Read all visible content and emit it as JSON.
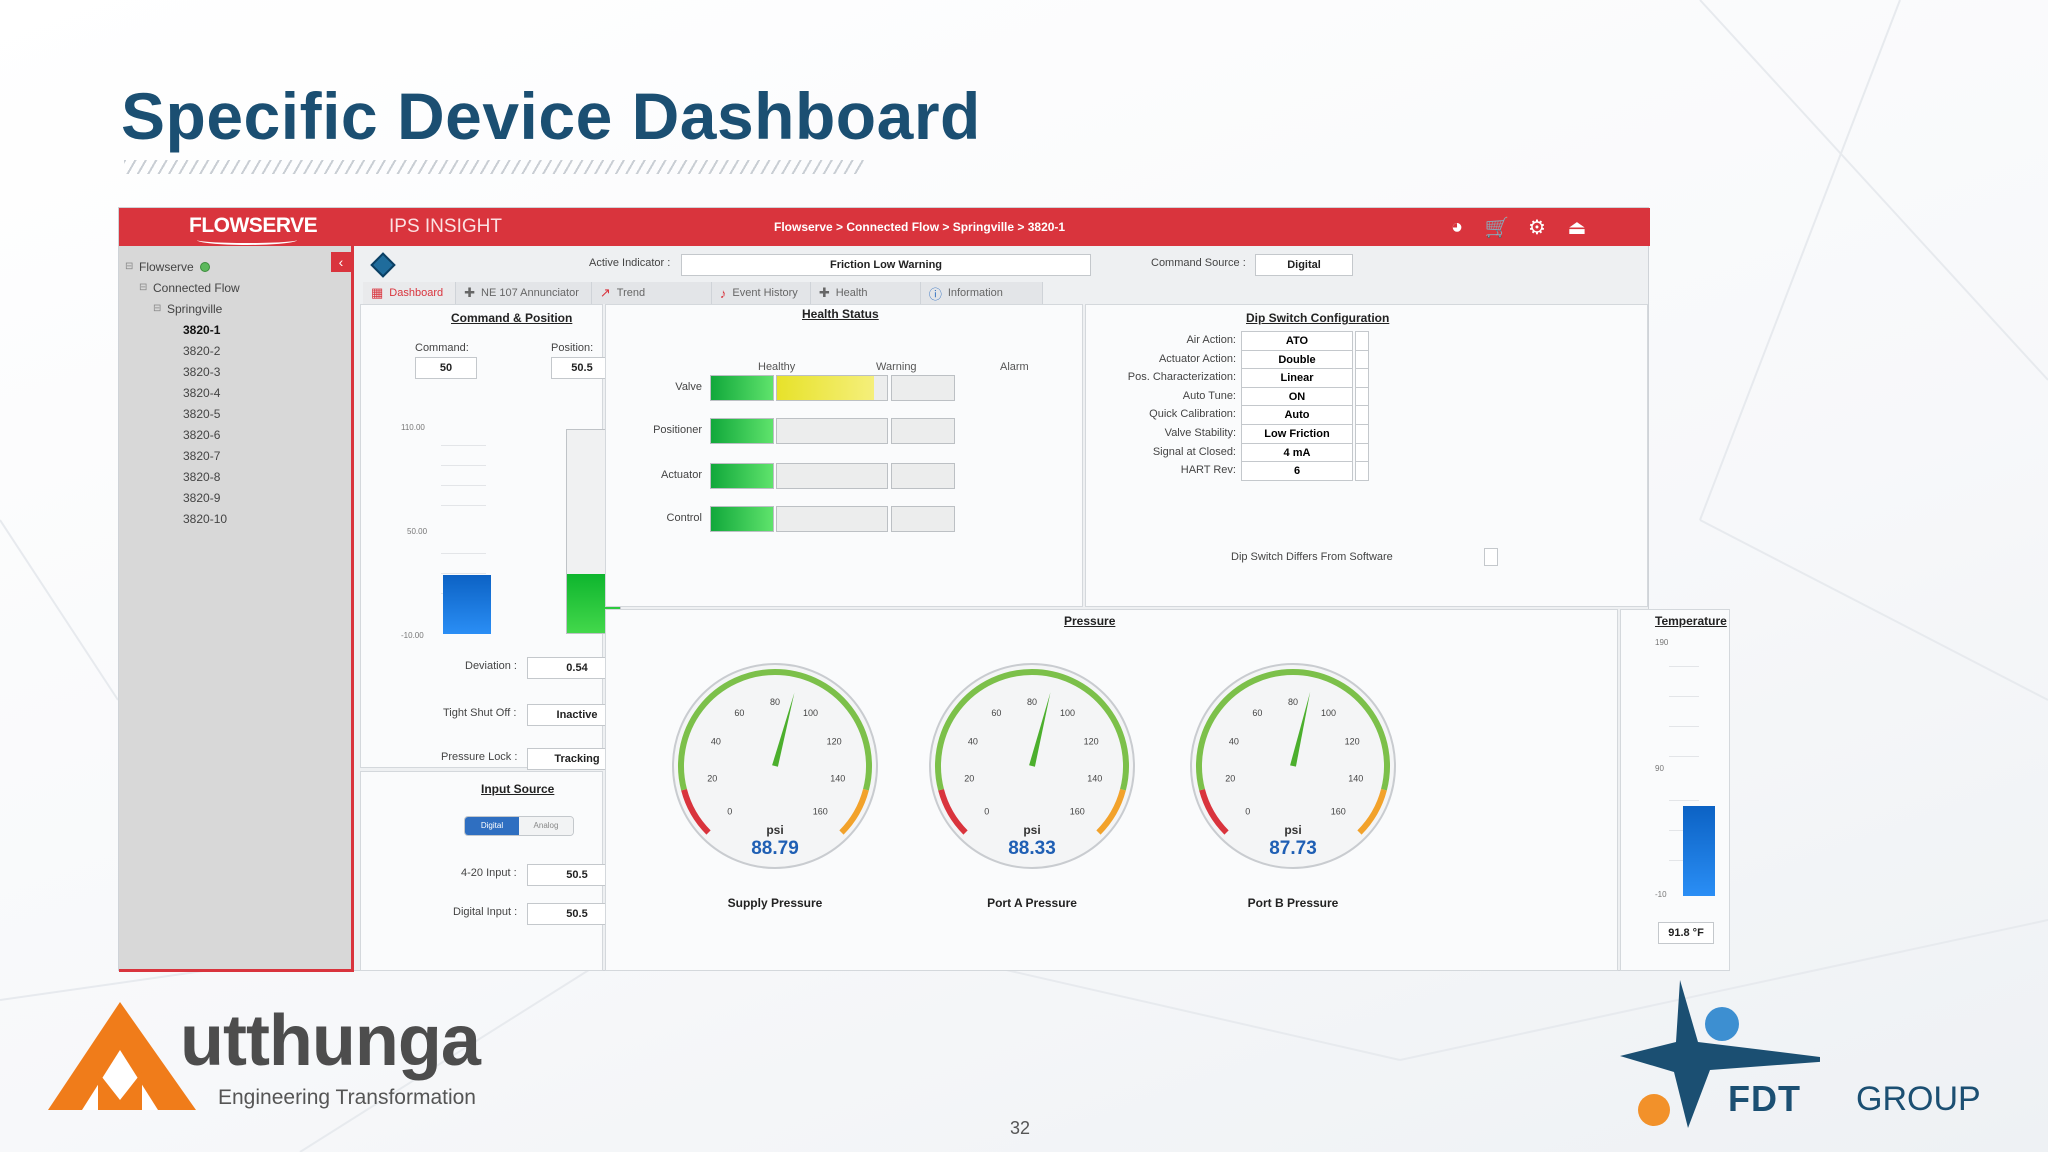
{
  "slide": {
    "title": "Specific Device Dashboard",
    "page_number": "32"
  },
  "app": {
    "brand": "FLOWSERVE",
    "product": "IPS INSIGHT",
    "breadcrumb": "Flowserve > Connected Flow > Springville > 3820-1",
    "top_icons": [
      "user-icon",
      "cart-icon",
      "settings-icon",
      "logout-icon"
    ]
  },
  "sidebar": {
    "root": "Flowserve",
    "group": "Connected Flow",
    "site": "Springville",
    "devices": [
      "3820-1",
      "3820-2",
      "3820-3",
      "3820-4",
      "3820-5",
      "3820-6",
      "3820-7",
      "3820-8",
      "3820-9",
      "3820-10"
    ],
    "selected": "3820-1"
  },
  "header": {
    "active_indicator_label": "Active Indicator :",
    "active_indicator_value": "Friction Low Warning",
    "command_source_label": "Command Source :",
    "command_source_value": "Digital"
  },
  "tabs": [
    {
      "label": "Dashboard",
      "icon": "dashboard-icon",
      "active": true
    },
    {
      "label": "NE 107 Annunciator",
      "icon": "annunciator-icon",
      "active": false
    },
    {
      "label": "Trend",
      "icon": "trend-icon",
      "active": false
    },
    {
      "label": "Event History",
      "icon": "bell-icon",
      "active": false
    },
    {
      "label": "Health",
      "icon": "health-icon",
      "active": false
    },
    {
      "label": "Information",
      "icon": "info-icon",
      "active": false
    }
  ],
  "command_position": {
    "title": "Command & Position",
    "command_label": "Command:",
    "command_value": "50",
    "position_label": "Position:",
    "position_value": "50.5",
    "axis_ticks": [
      "110.00",
      "50.00",
      "-10.00"
    ],
    "deviation_label": "Deviation :",
    "deviation_value": "0.54",
    "tight_shut_off_label": "Tight Shut Off :",
    "tight_shut_off_value": "Inactive",
    "pressure_lock_label": "Pressure Lock :",
    "pressure_lock_value": "Tracking"
  },
  "input_source": {
    "title": "Input Source",
    "toggle_on": "Digital",
    "toggle_off": "Analog",
    "input_420_label": "4-20 Input :",
    "input_420_value": "50.5",
    "digital_input_label": "Digital Input :",
    "digital_input_value": "50.5",
    "unit": "%"
  },
  "health_status": {
    "title": "Health Status",
    "columns": [
      "Healthy",
      "Warning",
      "Alarm"
    ],
    "rows": [
      {
        "label": "Valve",
        "healthy": 1.0,
        "warning": 0.88,
        "alarm": 0.0
      },
      {
        "label": "Positioner",
        "healthy": 1.0,
        "warning": 0.0,
        "alarm": 0.0
      },
      {
        "label": "Actuator",
        "healthy": 1.0,
        "warning": 0.0,
        "alarm": 0.0
      },
      {
        "label": "Control",
        "healthy": 1.0,
        "warning": 0.0,
        "alarm": 0.0
      }
    ]
  },
  "dip_switch": {
    "title": "Dip Switch Configuration",
    "rows": [
      {
        "label": "Air Action:",
        "value": "ATO"
      },
      {
        "label": "Actuator Action:",
        "value": "Double"
      },
      {
        "label": "Pos. Characterization:",
        "value": "Linear"
      },
      {
        "label": "Auto Tune:",
        "value": "ON"
      },
      {
        "label": "Quick Calibration:",
        "value": "Auto"
      },
      {
        "label": "Valve Stability:",
        "value": "Low Friction"
      },
      {
        "label": "Signal at Closed:",
        "value": "4 mA"
      },
      {
        "label": "HART Rev:",
        "value": "6"
      }
    ],
    "differs_label": "Dip Switch Differs From Software"
  },
  "pressure": {
    "title": "Pressure",
    "ticks": [
      "0",
      "20",
      "40",
      "60",
      "80",
      "100",
      "120",
      "140",
      "160"
    ],
    "unit": "psi",
    "gauges": [
      {
        "name": "Supply Pressure",
        "value": "88.79",
        "needle": 88.79
      },
      {
        "name": "Port A Pressure",
        "value": "88.33",
        "needle": 88.33
      },
      {
        "name": "Port B Pressure",
        "value": "87.73",
        "needle": 87.73
      }
    ]
  },
  "temperature": {
    "title": "Temperature",
    "axis_ticks": [
      "190",
      "90",
      "-10"
    ],
    "value_text": "91.8 °F",
    "value": 91.8,
    "min": -10,
    "max": 190
  },
  "command_bars": {
    "min": -10,
    "max": 110,
    "command": 50,
    "position": 50.5
  },
  "colors": {
    "brand_red": "#d9343d",
    "title_blue": "#1b4f72",
    "healthy": "#11a83b",
    "warning": "#e7e22a",
    "gauge_blue": "#1f5fb4"
  },
  "logos": {
    "left_word": "utthunga",
    "left_tagline": "Engineering Transformation",
    "right_word": "FDT",
    "right_group": "GROUP"
  }
}
